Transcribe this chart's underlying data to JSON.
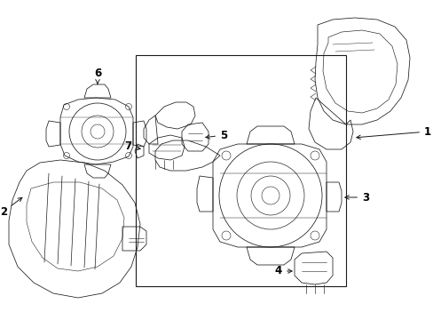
{
  "background_color": "#ffffff",
  "line_color": "#1a1a1a",
  "label_color": "#000000",
  "fig_width": 4.89,
  "fig_height": 3.6,
  "dpi": 100,
  "font_size": 8.5,
  "lw": 0.55
}
